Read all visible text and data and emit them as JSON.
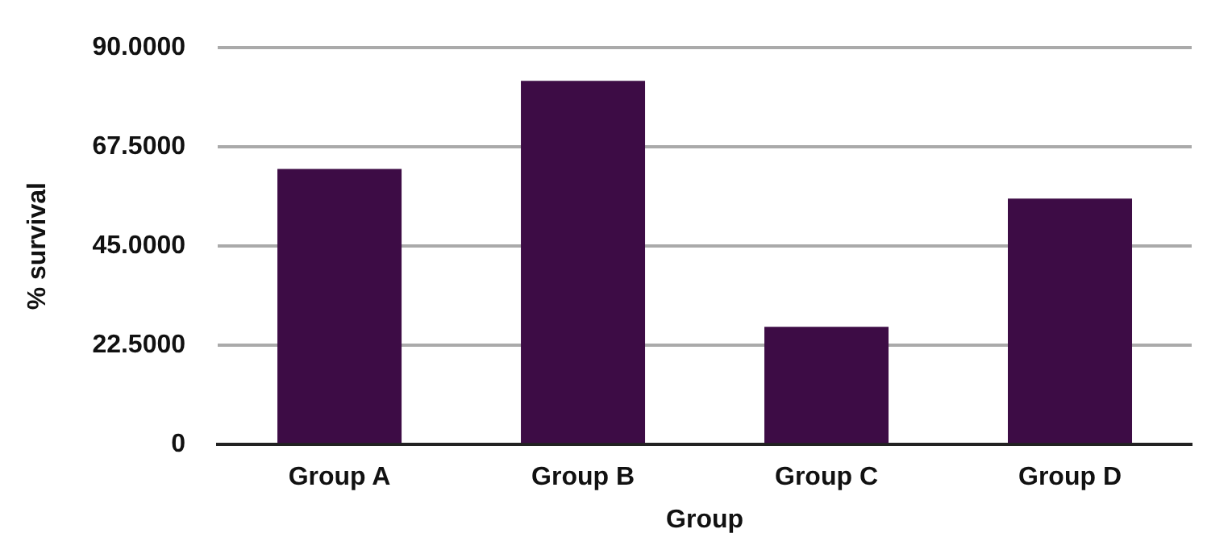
{
  "chart_data": {
    "type": "bar",
    "xlabel": "Group",
    "ylabel": "% survival",
    "categories": [
      "Group A",
      "Group B",
      "Group C",
      "Group D"
    ],
    "values": [
      62.5,
      82.5,
      26.7,
      55.8
    ],
    "color": "#3d0c45",
    "ylim": [
      0,
      90
    ],
    "yticks": [
      0,
      {
        "value": 22.5,
        "label": "22.5000"
      },
      {
        "value": 45,
        "label": "45.0000"
      },
      {
        "value": 67.5,
        "label": "67.5000"
      },
      {
        "value": 90,
        "label": "90.0000"
      }
    ],
    "grid": "y",
    "legend": false
  }
}
